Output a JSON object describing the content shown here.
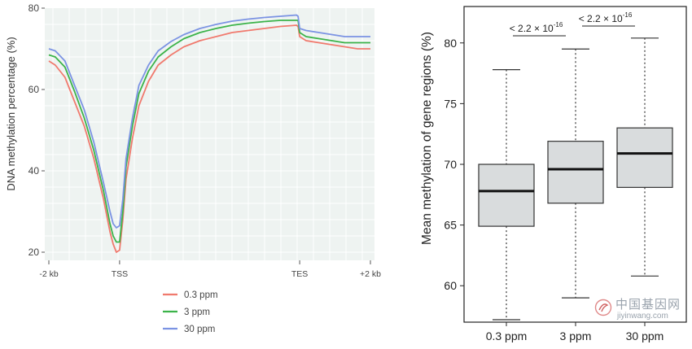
{
  "chart_data": [
    {
      "type": "line",
      "title": "",
      "xlabel": "",
      "ylabel": "DNA methylation percentage (%)",
      "ylim": [
        18,
        80
      ],
      "yticks": [
        20,
        40,
        60,
        80
      ],
      "xlim": [
        0,
        100
      ],
      "xticks": [
        {
          "pos": 0,
          "label": "-2 kb"
        },
        {
          "pos": 22,
          "label": "TSS"
        },
        {
          "pos": 78,
          "label": "TES"
        },
        {
          "pos": 100,
          "label": "+2 kb"
        }
      ],
      "grid": true,
      "legend": "bottom",
      "series": [
        {
          "name": "0.3 ppm",
          "color": "#f07a6e",
          "x": [
            0,
            2,
            5,
            8,
            11,
            14,
            17,
            19,
            20,
            21,
            22,
            23,
            24,
            26,
            28,
            31,
            34,
            38,
            42,
            47,
            52,
            57,
            62,
            67,
            72,
            77,
            77.5,
            78,
            80,
            84,
            88,
            92,
            96,
            100
          ],
          "y": [
            67,
            66,
            63,
            57,
            51,
            43,
            33,
            25,
            22,
            20,
            20.5,
            28,
            38,
            48,
            56,
            62,
            66,
            68.5,
            70.5,
            72,
            73,
            74,
            74.5,
            75,
            75.5,
            75.8,
            75.5,
            73,
            72,
            71.5,
            71,
            70.5,
            70,
            70
          ]
        },
        {
          "name": "3 ppm",
          "color": "#3cb34a",
          "x": [
            0,
            2,
            5,
            8,
            11,
            14,
            17,
            19,
            20,
            21,
            22,
            23,
            24,
            26,
            28,
            31,
            34,
            38,
            42,
            47,
            52,
            57,
            62,
            67,
            72,
            77,
            77.5,
            78,
            80,
            84,
            88,
            92,
            96,
            100
          ],
          "y": [
            68.5,
            68,
            65.5,
            59.5,
            53,
            45,
            35,
            27,
            24,
            22.5,
            22.5,
            30,
            41,
            51,
            59,
            64.5,
            68,
            70.5,
            72.5,
            74,
            75,
            75.8,
            76.3,
            76.7,
            77,
            77,
            77,
            74,
            73,
            72.5,
            72,
            71.5,
            71.5,
            71.5
          ]
        },
        {
          "name": "30 ppm",
          "color": "#7b93e3",
          "x": [
            0,
            2,
            5,
            8,
            11,
            14,
            17,
            19,
            20,
            21,
            22,
            23,
            24,
            26,
            28,
            31,
            34,
            38,
            42,
            47,
            52,
            57,
            62,
            67,
            72,
            77,
            77.5,
            78,
            80,
            84,
            88,
            92,
            96,
            100
          ],
          "y": [
            70,
            69.5,
            67,
            61,
            55,
            47,
            37,
            30,
            27,
            26,
            26.5,
            33,
            43,
            53,
            61,
            66,
            69.5,
            71.8,
            73.5,
            75,
            76,
            76.8,
            77.3,
            77.7,
            78,
            78.3,
            78,
            75,
            74.5,
            74,
            73.5,
            73,
            73,
            73
          ]
        }
      ]
    },
    {
      "type": "box",
      "title": "",
      "xlabel": "",
      "ylabel": "Mean methylation of gene regions (%)",
      "ylim": [
        57,
        83
      ],
      "yticks": [
        60,
        65,
        70,
        75,
        80
      ],
      "categories": [
        "0.3 ppm",
        "3 ppm",
        "30 ppm"
      ],
      "boxes": [
        {
          "whisker_low": 57.2,
          "q1": 64.9,
          "median": 67.8,
          "q3": 70.0,
          "whisker_high": 77.8
        },
        {
          "whisker_low": 59.0,
          "q1": 66.8,
          "median": 69.6,
          "q3": 71.9,
          "whisker_high": 79.5
        },
        {
          "whisker_low": 60.8,
          "q1": 68.1,
          "median": 70.9,
          "q3": 73.0,
          "whisker_high": 80.4
        }
      ],
      "box_color": "#d9dcdd",
      "annotations": [
        {
          "between": [
            0,
            1
          ],
          "text_base": "< 2.2 × 10",
          "text_exp": "-16"
        },
        {
          "between": [
            1,
            2
          ],
          "text_base": "< 2.2 × 10",
          "text_exp": "-16"
        }
      ]
    }
  ],
  "watermark": {
    "cn": "中国基因网",
    "url": "jiyinwang.com"
  }
}
